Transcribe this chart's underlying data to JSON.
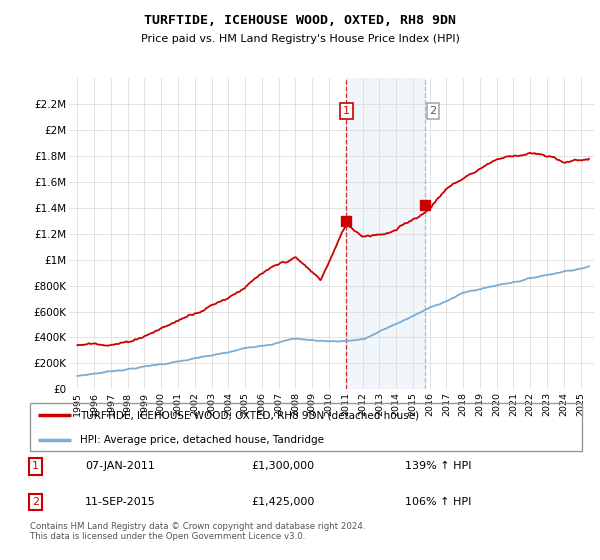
{
  "title": "TURFTIDE, ICEHOUSE WOOD, OXTED, RH8 9DN",
  "subtitle": "Price paid vs. HM Land Registry's House Price Index (HPI)",
  "legend_line1": "TURFTIDE, ICEHOUSE WOOD, OXTED, RH8 9DN (detached house)",
  "legend_line2": "HPI: Average price, detached house, Tandridge",
  "annotation1_date": "07-JAN-2011",
  "annotation1_price": "£1,300,000",
  "annotation1_hpi": "139% ↑ HPI",
  "annotation2_date": "11-SEP-2015",
  "annotation2_price": "£1,425,000",
  "annotation2_hpi": "106% ↑ HPI",
  "footnote": "Contains HM Land Registry data © Crown copyright and database right 2024.\nThis data is licensed under the Open Government Licence v3.0.",
  "hpi_color": "#7aadd4",
  "price_color": "#cc0000",
  "marker1_x": 2011.04,
  "marker1_y": 1300000,
  "marker2_x": 2015.71,
  "marker2_y": 1425000,
  "ymin": 0,
  "ymax": 2400000,
  "xmin": 1994.5,
  "xmax": 2025.8,
  "yticks": [
    0,
    200000,
    400000,
    600000,
    800000,
    1000000,
    1200000,
    1400000,
    1600000,
    1800000,
    2000000,
    2200000
  ],
  "ytick_labels": [
    "£0",
    "£200K",
    "£400K",
    "£600K",
    "£800K",
    "£1M",
    "£1.2M",
    "£1.4M",
    "£1.6M",
    "£1.8M",
    "£2M",
    "£2.2M"
  ],
  "xticks": [
    1995,
    1996,
    1997,
    1998,
    1999,
    2000,
    2001,
    2002,
    2003,
    2004,
    2005,
    2006,
    2007,
    2008,
    2009,
    2010,
    2011,
    2012,
    2013,
    2014,
    2015,
    2016,
    2017,
    2018,
    2019,
    2020,
    2021,
    2022,
    2023,
    2024,
    2025
  ]
}
